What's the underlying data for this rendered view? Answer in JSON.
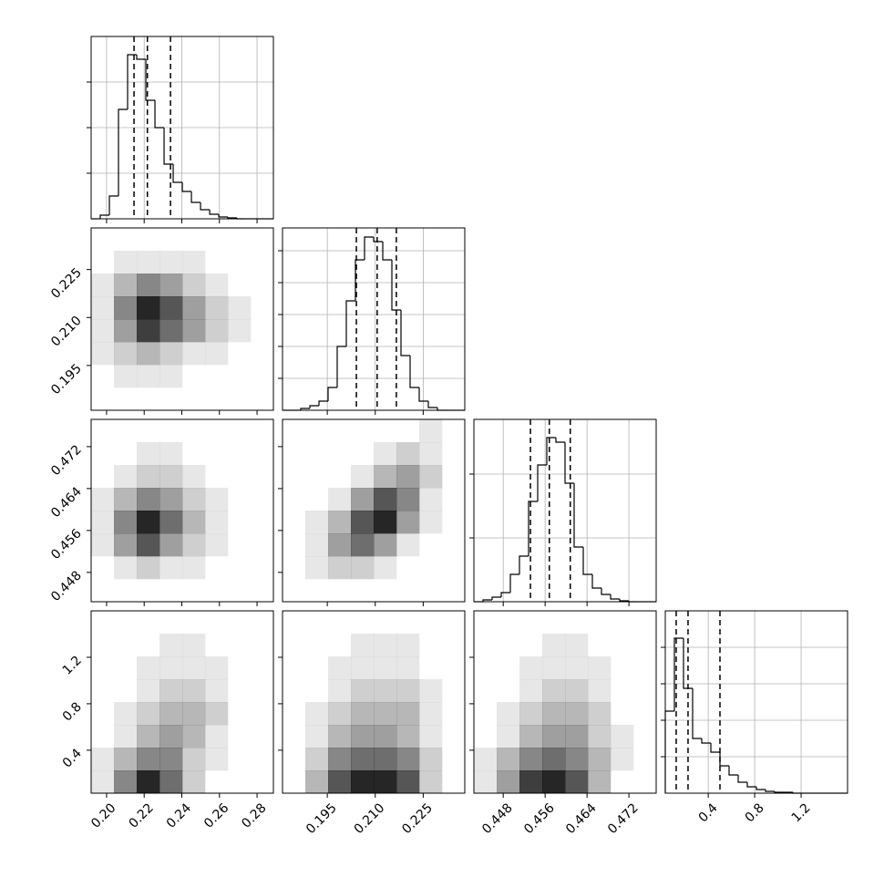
{
  "chart_data": {
    "type": "corner",
    "params": [
      {
        "lim": [
          0.1918,
          0.2887
        ],
        "ticks": [
          {
            "value": 0.2,
            "label": "0.20"
          },
          0.22,
          0.24,
          0.26,
          0.28
        ],
        "quantiles": [
          0.2146,
          0.2217,
          0.234
        ],
        "bins": [
          0.1918,
          0.19665,
          0.2015,
          0.20634,
          0.21119,
          0.21604,
          0.22088,
          0.22573,
          0.23058,
          0.23542,
          0.24027,
          0.24512,
          0.24996,
          0.25481,
          0.25966,
          0.2645,
          0.26935,
          0.2742,
          0.27904,
          0.28389,
          0.2887
        ],
        "counts": [
          0,
          40,
          250,
          1200,
          1800,
          1750,
          1300,
          1000,
          600,
          400,
          300,
          180,
          100,
          50,
          20,
          10,
          0,
          0,
          0,
          0
        ],
        "ylim": [
          0,
          2000
        ],
        "yticks": [
          500,
          1000,
          1500
        ]
      },
      {
        "lim": [
          0.181,
          0.238
        ],
        "ticks": [
          0.195,
          {
            "value": 0.21,
            "label": "0.210"
          },
          0.225
        ],
        "quantiles": [
          0.2041,
          0.2106,
          0.2166
        ],
        "bins": [
          0.181,
          0.18385,
          0.1867,
          0.18955,
          0.1924,
          0.19525,
          0.1981,
          0.20095,
          0.2038,
          0.20665,
          0.2095,
          0.21235,
          0.2152,
          0.21805,
          0.2209,
          0.22375,
          0.2266,
          0.22945,
          0.2323,
          0.23515,
          0.238
        ],
        "counts": [
          0,
          0,
          20,
          50,
          100,
          250,
          700,
          1200,
          1650,
          1900,
          1850,
          1650,
          1100,
          600,
          250,
          100,
          30,
          0,
          0,
          0
        ],
        "ylim": [
          0,
          2000
        ],
        "yticks": [
          350,
          700,
          1050,
          1400,
          1750
        ]
      },
      {
        "lim": [
          0.4424,
          0.4772
        ],
        "ticks": [
          0.448,
          0.456,
          0.464,
          0.472
        ],
        "quantiles": [
          0.4532,
          0.4568,
          0.4608
        ],
        "bins": [
          0.4424,
          0.44414,
          0.44588,
          0.44762,
          0.44936,
          0.4511,
          0.45284,
          0.45458,
          0.45632,
          0.45806,
          0.4598,
          0.46154,
          0.46328,
          0.46502,
          0.46676,
          0.4685,
          0.47024,
          0.47198,
          0.47372,
          0.47546,
          0.4772
        ],
        "counts": [
          0,
          20,
          50,
          100,
          300,
          500,
          1100,
          1500,
          1800,
          1750,
          1300,
          600,
          300,
          150,
          80,
          30,
          10,
          0,
          0,
          0
        ],
        "ylim": [
          0,
          2000
        ],
        "yticks": [
          700,
          1400
        ]
      },
      {
        "lim": [
          0.03,
          1.6
        ],
        "ticks": [
          0.4,
          0.8,
          1.2
        ],
        "quantiles": [
          0.124,
          0.226,
          0.501
        ],
        "bins": [
          0.03,
          0.1085,
          0.187,
          0.2655,
          0.344,
          0.4225,
          0.501,
          0.5795,
          0.658,
          0.7365,
          0.815,
          0.8935,
          0.972,
          1.0505,
          1.129,
          1.2075,
          1.286,
          1.3645,
          1.443,
          1.5215,
          1.6
        ],
        "counts": [
          900,
          1700,
          1150,
          600,
          550,
          450,
          300,
          200,
          120,
          70,
          40,
          20,
          10,
          10,
          0,
          0,
          0,
          0,
          0,
          0
        ],
        "ylim": [
          0,
          2000
        ],
        "yticks": [
          400,
          800,
          1200,
          1600
        ]
      }
    ],
    "pairs": [
      {
        "x": 0,
        "y": 1,
        "density": [
          [
            0,
            0,
            0,
            0,
            0,
            0,
            0,
            0
          ],
          [
            0,
            1,
            1,
            1,
            1,
            0,
            0,
            0
          ],
          [
            1,
            3,
            5,
            4,
            2,
            1,
            0,
            0
          ],
          [
            1,
            5,
            9,
            7,
            4,
            2,
            1,
            0
          ],
          [
            1,
            4,
            8,
            6,
            4,
            2,
            1,
            0
          ],
          [
            1,
            2,
            3,
            2,
            1,
            1,
            0,
            0
          ],
          [
            0,
            1,
            1,
            1,
            0,
            0,
            0,
            0
          ],
          [
            0,
            0,
            0,
            0,
            0,
            0,
            0,
            0
          ]
        ]
      },
      {
        "x": 0,
        "y": 2,
        "density": [
          [
            0,
            0,
            0,
            0,
            0,
            0,
            0,
            0
          ],
          [
            0,
            0,
            1,
            1,
            0,
            0,
            0,
            0
          ],
          [
            0,
            1,
            2,
            2,
            1,
            0,
            0,
            0
          ],
          [
            1,
            3,
            5,
            4,
            2,
            1,
            0,
            0
          ],
          [
            1,
            5,
            9,
            6,
            3,
            1,
            0,
            0
          ],
          [
            1,
            4,
            7,
            4,
            2,
            1,
            0,
            0
          ],
          [
            0,
            1,
            2,
            1,
            1,
            0,
            0,
            0
          ],
          [
            0,
            0,
            0,
            0,
            0,
            0,
            0,
            0
          ]
        ]
      },
      {
        "x": 1,
        "y": 2,
        "density": [
          [
            0,
            0,
            0,
            0,
            0,
            0,
            1,
            0
          ],
          [
            0,
            0,
            0,
            0,
            1,
            2,
            1,
            0
          ],
          [
            0,
            0,
            0,
            1,
            3,
            4,
            2,
            0
          ],
          [
            0,
            0,
            1,
            4,
            7,
            5,
            1,
            0
          ],
          [
            0,
            1,
            3,
            7,
            9,
            4,
            1,
            0
          ],
          [
            0,
            1,
            4,
            6,
            4,
            1,
            0,
            0
          ],
          [
            0,
            1,
            2,
            2,
            1,
            0,
            0,
            0
          ],
          [
            0,
            0,
            0,
            0,
            0,
            0,
            0,
            0
          ]
        ]
      },
      {
        "x": 0,
        "y": 3,
        "density": [
          [
            0,
            0,
            0,
            0,
            0,
            0,
            0,
            0
          ],
          [
            0,
            0,
            0,
            1,
            1,
            0,
            0,
            0
          ],
          [
            0,
            0,
            1,
            1,
            1,
            1,
            0,
            0
          ],
          [
            0,
            0,
            1,
            2,
            2,
            1,
            0,
            0
          ],
          [
            0,
            1,
            2,
            3,
            3,
            2,
            0,
            0
          ],
          [
            0,
            1,
            3,
            4,
            3,
            1,
            0,
            0
          ],
          [
            1,
            3,
            5,
            5,
            2,
            1,
            0,
            0
          ],
          [
            1,
            5,
            9,
            6,
            2,
            0,
            0,
            0
          ]
        ]
      },
      {
        "x": 1,
        "y": 3,
        "density": [
          [
            0,
            0,
            0,
            0,
            0,
            0,
            0,
            0
          ],
          [
            0,
            0,
            0,
            1,
            1,
            1,
            0,
            0
          ],
          [
            0,
            0,
            1,
            1,
            1,
            1,
            0,
            0
          ],
          [
            0,
            0,
            1,
            2,
            2,
            2,
            1,
            0
          ],
          [
            0,
            1,
            2,
            3,
            3,
            3,
            1,
            0
          ],
          [
            0,
            1,
            3,
            4,
            4,
            3,
            1,
            0
          ],
          [
            0,
            2,
            5,
            6,
            6,
            5,
            2,
            0
          ],
          [
            0,
            3,
            7,
            9,
            9,
            7,
            2,
            0
          ]
        ]
      },
      {
        "x": 2,
        "y": 3,
        "density": [
          [
            0,
            0,
            0,
            0,
            0,
            0,
            0,
            0
          ],
          [
            0,
            0,
            0,
            1,
            1,
            0,
            0,
            0
          ],
          [
            0,
            0,
            1,
            1,
            1,
            1,
            0,
            0
          ],
          [
            0,
            0,
            1,
            2,
            2,
            1,
            0,
            0
          ],
          [
            0,
            1,
            2,
            3,
            3,
            2,
            0,
            0
          ],
          [
            0,
            1,
            3,
            4,
            4,
            2,
            1,
            0
          ],
          [
            1,
            3,
            5,
            6,
            5,
            3,
            1,
            0
          ],
          [
            1,
            4,
            8,
            9,
            7,
            3,
            0,
            0
          ]
        ]
      }
    ]
  }
}
